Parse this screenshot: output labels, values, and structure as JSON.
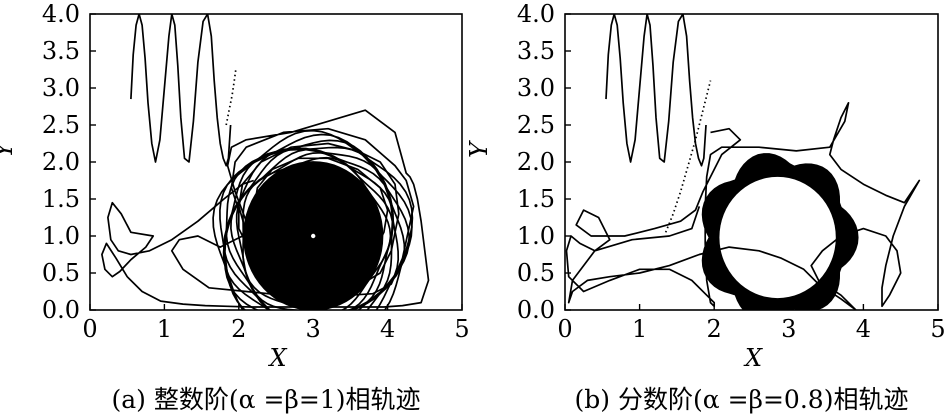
{
  "chart_data": [
    {
      "type": "line",
      "title": "",
      "caption": "(a) 整数阶(α =β=1)相轨迹",
      "xlabel": "X",
      "ylabel": "Y",
      "xlim": [
        0,
        5
      ],
      "ylim": [
        0,
        4.0
      ],
      "xticks": [
        "0",
        "1",
        "2",
        "3",
        "4",
        "5"
      ],
      "yticks": [
        "0.0",
        "0.5",
        "1.0",
        "1.5",
        "2.0",
        "2.5",
        "3.0",
        "3.5",
        "4.0"
      ],
      "grid": false,
      "legend": "none",
      "equilibrium_point": [
        3.0,
        1.0
      ],
      "series": [
        {
          "role": "initial-oscillation",
          "x": [
            0.55,
            0.58,
            0.62,
            0.66,
            0.7,
            0.74,
            0.78,
            0.83,
            0.88,
            0.94,
            1.0,
            1.06,
            1.1,
            1.14,
            1.18,
            1.22,
            1.27,
            1.33,
            1.39,
            1.45,
            1.52,
            1.58,
            1.63,
            1.67,
            1.71,
            1.75,
            1.79,
            1.83,
            1.86,
            1.89
          ],
          "y": [
            2.85,
            3.45,
            3.85,
            4.0,
            3.85,
            3.4,
            2.8,
            2.25,
            2.0,
            2.3,
            3.0,
            3.7,
            4.0,
            3.85,
            3.3,
            2.6,
            2.05,
            2.0,
            2.55,
            3.35,
            3.9,
            4.0,
            3.7,
            3.1,
            2.6,
            2.25,
            2.05,
            1.95,
            2.05,
            2.5
          ]
        },
        {
          "role": "transient-loops",
          "x": [
            2.2,
            2.05,
            1.8,
            1.45,
            1.1,
            0.8,
            0.55,
            0.38,
            0.28,
            0.24,
            0.3,
            0.42,
            0.55,
            0.85,
            0.75,
            0.55,
            0.4,
            0.3,
            0.2,
            0.16,
            0.22,
            0.35,
            0.5,
            0.7,
            0.95,
            1.25,
            1.55,
            1.85,
            2.15,
            2.45,
            2.75,
            3.05,
            3.35,
            3.65,
            3.95,
            4.2,
            4.45,
            4.55,
            4.5,
            4.45,
            4.4,
            4.35,
            4.3,
            4.25,
            4.1,
            3.7,
            3.2,
            2.7,
            2.1,
            1.9,
            1.85,
            1.95,
            2.1,
            2.05,
            1.75,
            1.45,
            1.2,
            1.1,
            1.25,
            1.6,
            2.1,
            2.6,
            3.1,
            3.5,
            3.8,
            4.05,
            4.2,
            4.35,
            4.25,
            4.1,
            3.7,
            3.2,
            2.6,
            2.1,
            1.95,
            1.9,
            2.0,
            2.0,
            2.2,
            2.6,
            3.0,
            3.4,
            3.7,
            3.9,
            4.05,
            4.15,
            4.1,
            3.9,
            3.6,
            3.2,
            2.7,
            2.3,
            2.05,
            2.0,
            2.1,
            2.35,
            2.75,
            3.2,
            3.55,
            3.8,
            3.95,
            4.0,
            3.9,
            3.6,
            3.2,
            2.8,
            2.45,
            2.25,
            2.2
          ],
          "y": [
            1.75,
            1.7,
            1.5,
            1.2,
            0.95,
            0.8,
            0.75,
            0.8,
            0.95,
            1.25,
            1.45,
            1.3,
            1.05,
            1.0,
            0.85,
            0.68,
            0.52,
            0.45,
            0.55,
            0.75,
            0.9,
            0.7,
            0.45,
            0.25,
            0.12,
            0.08,
            0.06,
            0.05,
            0.04,
            0.04,
            0.04,
            0.04,
            0.04,
            0.04,
            0.04,
            0.06,
            0.1,
            0.4,
            0.8,
            1.2,
            1.5,
            1.7,
            1.8,
            1.85,
            2.4,
            2.7,
            2.55,
            2.4,
            2.3,
            2.2,
            1.95,
            1.6,
            1.2,
            1.0,
            0.85,
            1.0,
            0.95,
            0.8,
            0.55,
            0.3,
            0.25,
            0.2,
            0.18,
            0.2,
            0.22,
            0.35,
            0.7,
            1.4,
            1.75,
            1.95,
            2.3,
            2.45,
            2.4,
            2.2,
            2.0,
            1.65,
            1.35,
            1.1,
            0.7,
            0.4,
            0.3,
            0.3,
            0.38,
            0.5,
            0.8,
            1.3,
            1.7,
            2.0,
            2.15,
            2.25,
            2.2,
            2.0,
            1.7,
            1.4,
            1.05,
            0.7,
            0.5,
            0.45,
            0.55,
            0.75,
            1.05,
            1.35,
            1.65,
            1.9,
            2.05,
            2.05,
            1.9,
            1.65,
            1.35
          ]
        },
        {
          "role": "dotted-path",
          "x": [
            1.83,
            1.87,
            1.91,
            1.94,
            1.96
          ],
          "y": [
            2.5,
            2.7,
            2.9,
            3.1,
            3.25
          ]
        }
      ],
      "spiral": {
        "center": [
          3.0,
          1.0
        ],
        "r_outer": 1.15,
        "r_inner": 0.0,
        "fill": "#000000",
        "center_dot": "#ffffff"
      }
    },
    {
      "type": "line",
      "title": "",
      "caption": "(b) 分数阶(α =β=0.8)相轨迹",
      "xlabel": "X",
      "ylabel": "Y",
      "xlim": [
        0,
        5
      ],
      "ylim": [
        0,
        4.0
      ],
      "xticks": [
        "0",
        "1",
        "2",
        "3",
        "4",
        "5"
      ],
      "yticks": [
        "0.0",
        "0.5",
        "1.0",
        "1.5",
        "2.0",
        "2.5",
        "3.0",
        "3.5",
        "4.0"
      ],
      "grid": false,
      "legend": "none",
      "series": [
        {
          "role": "initial-oscillation",
          "x": [
            0.55,
            0.58,
            0.62,
            0.66,
            0.7,
            0.74,
            0.78,
            0.83,
            0.88,
            0.94,
            1.0,
            1.06,
            1.1,
            1.14,
            1.18,
            1.22,
            1.27,
            1.33,
            1.39,
            1.45,
            1.52,
            1.58,
            1.63,
            1.67,
            1.71,
            1.75,
            1.79,
            1.83,
            1.86,
            1.89
          ],
          "y": [
            2.85,
            3.45,
            3.85,
            4.0,
            3.85,
            3.4,
            2.8,
            2.25,
            2.0,
            2.3,
            3.0,
            3.7,
            4.0,
            3.85,
            3.3,
            2.6,
            2.05,
            2.0,
            2.55,
            3.35,
            3.9,
            4.0,
            3.7,
            3.1,
            2.6,
            2.25,
            2.05,
            1.95,
            2.05,
            2.5
          ]
        },
        {
          "role": "transient-loops",
          "x": [
            1.95,
            2.2,
            2.35,
            2.1,
            1.85,
            1.75,
            1.55,
            1.2,
            0.8,
            0.35,
            0.15,
            0.25,
            0.45,
            0.6,
            0.4,
            0.2,
            0.08,
            0.02,
            0.05,
            0.25,
            0.6,
            1.0,
            1.4,
            1.7,
            1.9,
            2.0,
            2.0,
            1.95,
            1.9,
            1.88,
            1.88,
            1.9,
            1.95,
            2.1,
            2.6,
            3.1,
            3.55,
            3.75,
            3.8,
            3.7,
            3.6,
            3.55,
            3.7,
            4.0,
            4.3,
            4.55,
            4.75,
            4.55,
            4.4,
            4.3,
            4.25,
            4.25,
            4.35,
            4.5,
            4.45,
            4.3,
            4.0,
            3.7,
            3.45,
            3.3,
            3.4,
            3.7,
            3.85,
            3.9,
            3.7,
            3.4,
            3.2,
            2.9,
            2.6,
            2.2,
            1.8,
            1.4,
            1.0,
            0.6,
            0.3,
            0.1,
            0.05,
            0.1,
            0.4,
            0.9,
            1.4,
            1.7,
            1.8
          ],
          "y": [
            2.4,
            2.45,
            2.3,
            2.1,
            1.6,
            1.35,
            1.2,
            1.1,
            1.0,
            1.0,
            1.15,
            1.35,
            1.25,
            0.95,
            0.8,
            0.9,
            1.0,
            0.8,
            0.45,
            0.25,
            0.4,
            0.55,
            0.55,
            0.4,
            0.2,
            0.1,
            0.05,
            0.1,
            0.4,
            0.9,
            1.4,
            1.8,
            2.1,
            2.2,
            2.2,
            2.15,
            2.2,
            2.55,
            2.8,
            2.6,
            2.3,
            2.1,
            1.9,
            1.7,
            1.55,
            1.45,
            1.75,
            1.4,
            1.0,
            0.6,
            0.3,
            0.05,
            0.2,
            0.5,
            0.8,
            1.0,
            1.1,
            1.0,
            0.8,
            0.6,
            0.4,
            0.2,
            0.05,
            0.0,
            0.15,
            0.35,
            0.55,
            0.7,
            0.8,
            0.85,
            0.75,
            0.6,
            0.5,
            0.45,
            0.4,
            0.25,
            0.1,
            0.4,
            0.8,
            0.95,
            1.0,
            1.1,
            1.4
          ]
        },
        {
          "role": "dotted-path",
          "x": [
            1.35,
            1.45,
            1.55,
            1.65,
            1.75,
            1.85,
            1.95
          ],
          "y": [
            1.05,
            1.3,
            1.6,
            1.95,
            2.3,
            2.7,
            3.1
          ]
        }
      ],
      "limit_cycle_band": {
        "center": [
          2.85,
          0.98
        ],
        "outer_radius_max": 1.25,
        "inner_hole_radius": 0.78,
        "fill": "#000000"
      }
    }
  ]
}
